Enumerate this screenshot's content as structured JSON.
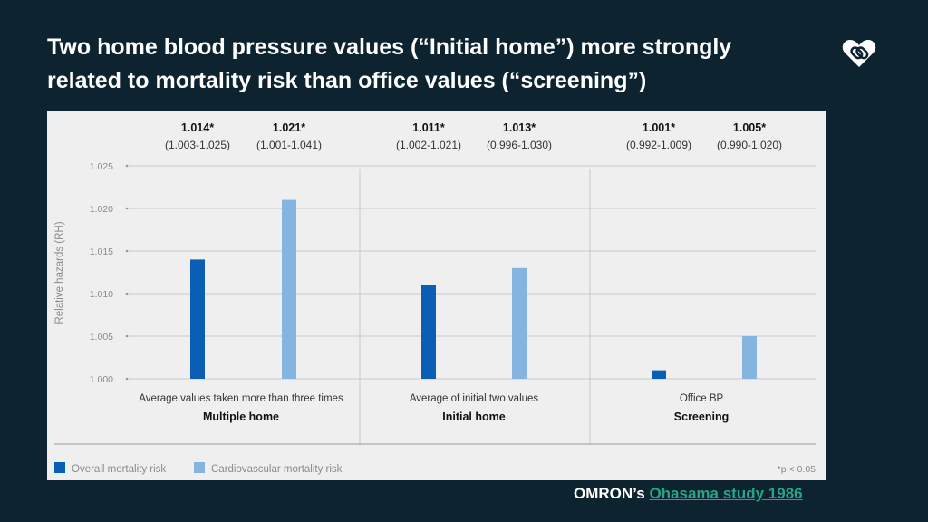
{
  "slide": {
    "title": "Two home blood pressure values (“Initial home”) more strongly related to mortality risk than office values (“screening”)",
    "footer_prefix": "OMRON’s",
    "footer_link": "Ohasama study 1986",
    "logo_icon": "heart-link-icon"
  },
  "chart_data": {
    "type": "bar",
    "ylabel": "Relative hazards (RH)",
    "ylim": [
      1.0,
      1.025
    ],
    "yticks": [
      "1.000",
      "1.005",
      "1.010",
      "1.015",
      "1.020",
      "1.025"
    ],
    "groups": [
      {
        "title": "Multiple home",
        "subtitle": "Average values taken more than three times"
      },
      {
        "title": "Initial home",
        "subtitle": "Average of initial two values"
      },
      {
        "title": "Screening",
        "subtitle": "Office BP"
      }
    ],
    "series": [
      {
        "name": "Overall mortality risk",
        "color": "#0a5fb4",
        "values": [
          1.014,
          1.011,
          1.001
        ],
        "labels": [
          "1.014*",
          "1.011*",
          "1.001*"
        ],
        "ci": [
          "(1.003-1.025)",
          "(1.002-1.021)",
          "(0.992-1.009)"
        ]
      },
      {
        "name": "Cardiovascular mortality risk",
        "color": "#86b4e0",
        "values": [
          1.021,
          1.013,
          1.005
        ],
        "labels": [
          "1.021*",
          "1.013*",
          "1.005*"
        ],
        "ci": [
          "(1.001-1.041)",
          "(0.996-1.030)",
          "(0.990-1.020)"
        ]
      }
    ],
    "grid": true,
    "legend": "bottom-left",
    "note": "*p < 0.05"
  }
}
